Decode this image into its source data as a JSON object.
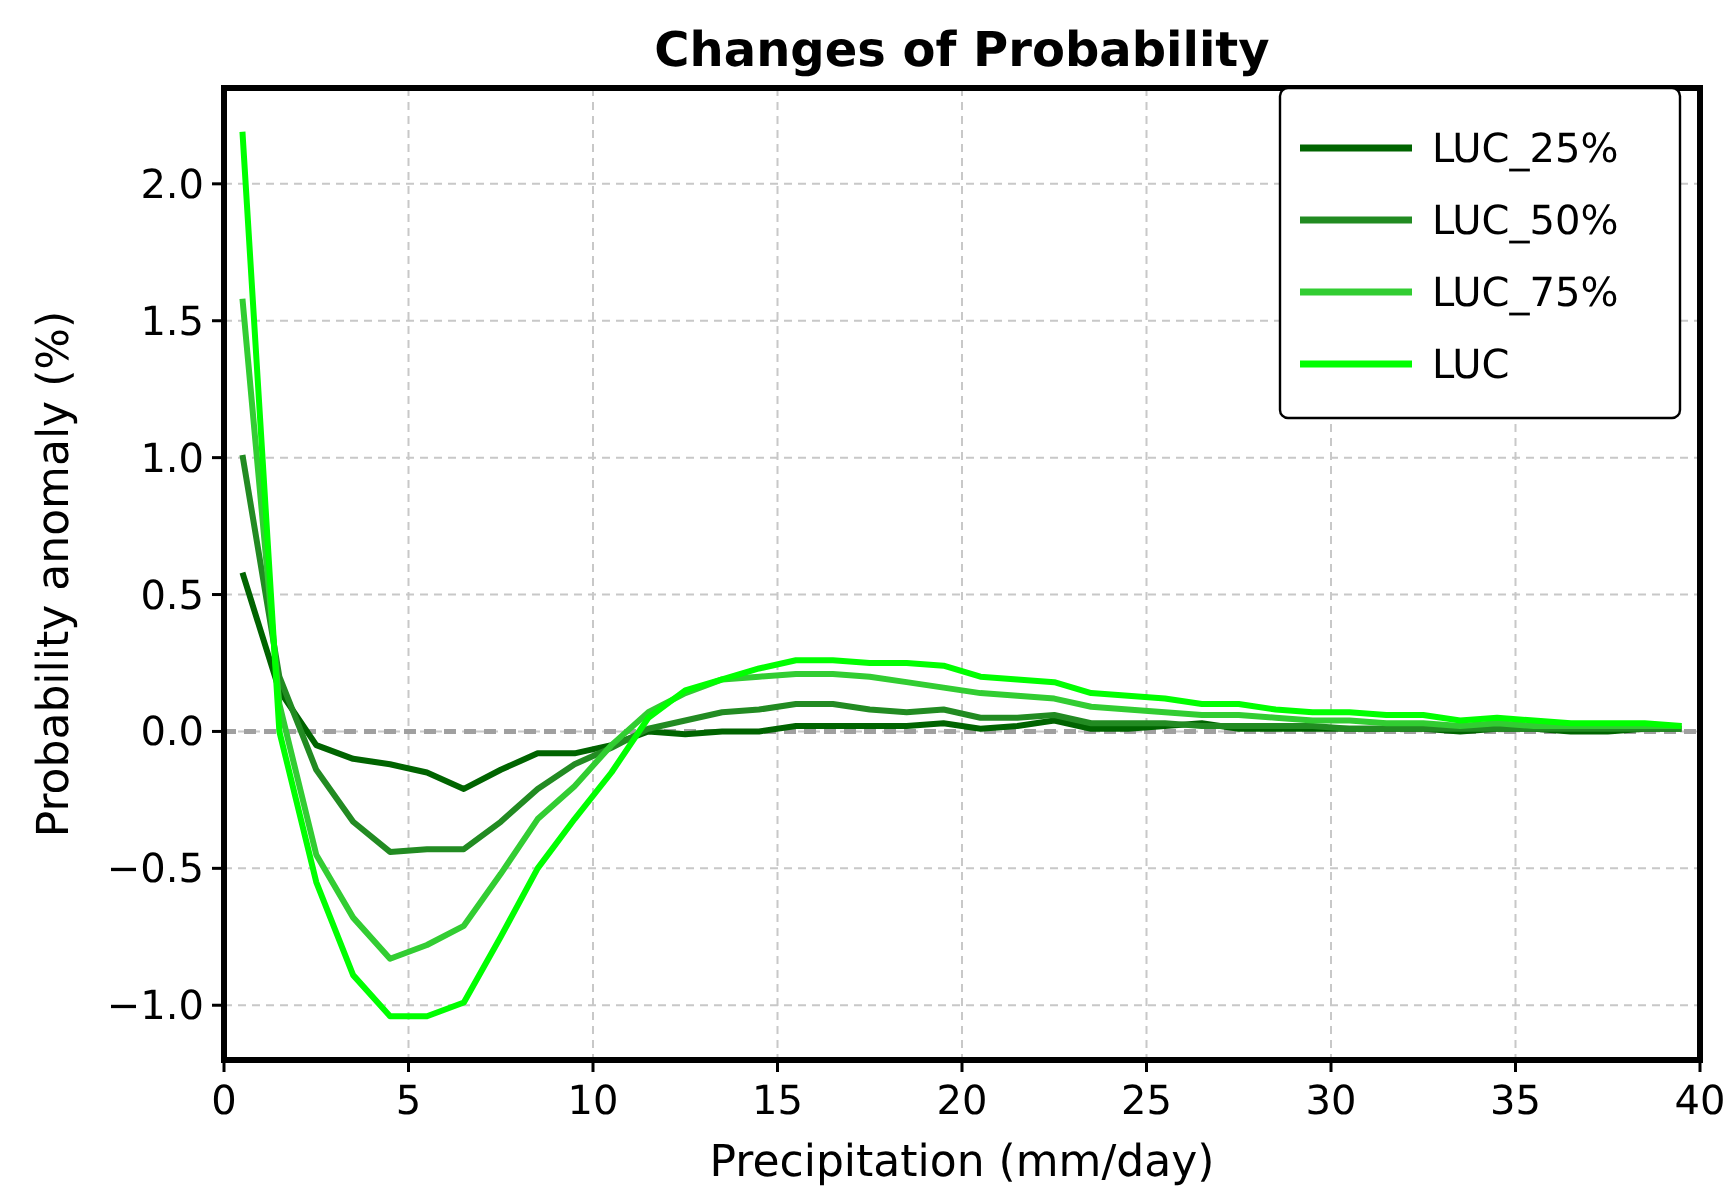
{
  "chart_data": {
    "type": "line",
    "title": "Changes of Probability",
    "xlabel": "Precipitation (mm/day)",
    "ylabel": "Probability anomaly (%)",
    "x": [
      0.5,
      1.5,
      2.5,
      3.5,
      4.5,
      5.5,
      6.5,
      7.5,
      8.5,
      9.5,
      10.5,
      11.5,
      12.5,
      13.5,
      14.5,
      15.5,
      16.5,
      17.5,
      18.5,
      19.5,
      20.5,
      21.5,
      22.5,
      23.5,
      24.5,
      25.5,
      26.5,
      27.5,
      28.5,
      29.5,
      30.5,
      31.5,
      32.5,
      33.5,
      34.5,
      35.5,
      36.5,
      37.5,
      38.5,
      39.5
    ],
    "series": [
      {
        "name": "LUC_25%",
        "color": "#006400",
        "values": [
          0.58,
          0.15,
          -0.05,
          -0.1,
          -0.12,
          -0.15,
          -0.21,
          -0.14,
          -0.08,
          -0.08,
          -0.05,
          0.0,
          -0.01,
          0.0,
          0.0,
          0.02,
          0.02,
          0.02,
          0.02,
          0.03,
          0.01,
          0.02,
          0.04,
          0.01,
          0.01,
          0.02,
          0.03,
          0.01,
          0.01,
          0.01,
          0.01,
          0.01,
          0.01,
          0.0,
          0.01,
          0.01,
          0.0,
          0.0,
          0.01,
          0.01
        ]
      },
      {
        "name": "LUC_50%",
        "color": "#228b22",
        "values": [
          1.01,
          0.2,
          -0.14,
          -0.33,
          -0.44,
          -0.43,
          -0.43,
          -0.33,
          -0.21,
          -0.12,
          -0.06,
          0.01,
          0.04,
          0.07,
          0.08,
          0.1,
          0.1,
          0.08,
          0.07,
          0.08,
          0.05,
          0.05,
          0.06,
          0.03,
          0.03,
          0.03,
          0.02,
          0.02,
          0.02,
          0.02,
          0.01,
          0.01,
          0.01,
          0.01,
          0.01,
          0.01,
          0.01,
          0.01,
          0.01,
          0.01
        ]
      },
      {
        "name": "LUC_75%",
        "color": "#32cd32",
        "values": [
          1.58,
          0.1,
          -0.45,
          -0.68,
          -0.83,
          -0.78,
          -0.71,
          -0.52,
          -0.32,
          -0.2,
          -0.05,
          0.07,
          0.14,
          0.19,
          0.2,
          0.21,
          0.21,
          0.2,
          0.18,
          0.16,
          0.14,
          0.13,
          0.12,
          0.09,
          0.08,
          0.07,
          0.06,
          0.06,
          0.05,
          0.04,
          0.04,
          0.03,
          0.03,
          0.02,
          0.03,
          0.02,
          0.02,
          0.02,
          0.02,
          0.02
        ]
      },
      {
        "name": "LUC",
        "color": "#00ff00",
        "values": [
          2.19,
          0.0,
          -0.55,
          -0.89,
          -1.04,
          -1.04,
          -0.99,
          -0.75,
          -0.5,
          -0.32,
          -0.15,
          0.05,
          0.15,
          0.19,
          0.23,
          0.26,
          0.26,
          0.25,
          0.25,
          0.24,
          0.2,
          0.19,
          0.18,
          0.14,
          0.13,
          0.12,
          0.1,
          0.1,
          0.08,
          0.07,
          0.07,
          0.06,
          0.06,
          0.04,
          0.05,
          0.04,
          0.03,
          0.03,
          0.03,
          0.02
        ]
      }
    ],
    "xlim": [
      0,
      40
    ],
    "xticks": [
      0,
      5,
      10,
      15,
      20,
      25,
      30,
      35,
      40
    ],
    "ylim": [
      -1.2,
      2.35
    ],
    "yticks": [
      {
        "value": -1,
        "label": "−1.0"
      },
      {
        "value": -0.5,
        "label": "−0.5"
      },
      {
        "value": 0,
        "label": "0.0"
      },
      {
        "value": 0.5,
        "label": "0.5"
      },
      {
        "value": 1,
        "label": "1.0"
      },
      {
        "value": 1.5,
        "label": "1.5"
      },
      {
        "value": 2,
        "label": "2.0"
      }
    ],
    "grid": true,
    "legend": "top right",
    "line_style": "solid",
    "ref_lines": [
      {
        "axis": "y",
        "value": 0,
        "color": "#a0a0a0",
        "line_style": "dashed"
      }
    ]
  }
}
